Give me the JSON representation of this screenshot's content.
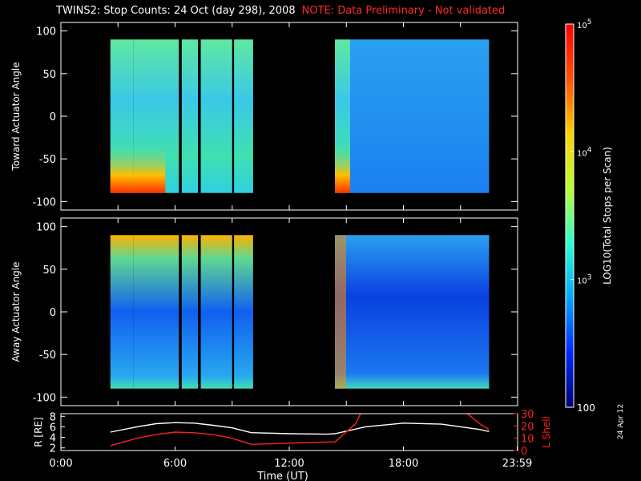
{
  "header": {
    "title": "TWINS2: Stop Counts: 24 Oct (day 298), 2008",
    "note": "NOTE: Data Preliminary - Not validated"
  },
  "date_stamp": "24 Apr 12",
  "colors": {
    "background": "#000000",
    "axes": "#ffffff",
    "note": "#ff2a2a",
    "lshell": "#ff2020",
    "radius": "#ffffff"
  },
  "chart_data": [
    {
      "type": "heatmap",
      "ylabel": "Toward Actuator Angle",
      "ylim": [
        -110,
        110
      ],
      "yticks": [
        -100,
        -50,
        0,
        50,
        100
      ],
      "xlim": [
        0,
        24
      ],
      "data_blocks_hours": [
        [
          2.6,
          3.8
        ],
        [
          3.8,
          6.2
        ],
        [
          6.35,
          7.2
        ],
        [
          7.35,
          9.0
        ],
        [
          9.1,
          10.1
        ],
        [
          14.4,
          15.2
        ],
        [
          15.2,
          18.8
        ],
        [
          18.8,
          22.5
        ]
      ],
      "angle_range": [
        -90,
        90
      ]
    },
    {
      "type": "heatmap",
      "ylabel": "Away Actuator Angle",
      "ylim": [
        -110,
        110
      ],
      "yticks": [
        -100,
        -50,
        0,
        50,
        100
      ],
      "xlim": [
        0,
        24
      ],
      "data_blocks_hours": [
        [
          2.6,
          3.8
        ],
        [
          3.8,
          6.2
        ],
        [
          6.35,
          7.2
        ],
        [
          7.35,
          9.0
        ],
        [
          9.1,
          10.1
        ],
        [
          14.4,
          15.2
        ],
        [
          15.2,
          18.8
        ],
        [
          18.8,
          22.5
        ]
      ],
      "angle_range": [
        -90,
        90
      ]
    },
    {
      "type": "line",
      "xlabel": "Time (UT)",
      "xticks": [
        "0:00",
        "6:00",
        "12:00",
        "18:00",
        "23:59"
      ],
      "xtick_hours": [
        0,
        6,
        12,
        18,
        23.98
      ],
      "left_axis": {
        "label": "R [RE]",
        "ylim": [
          1.5,
          8.5
        ],
        "yticks": [
          2,
          4,
          6,
          8
        ]
      },
      "right_axis": {
        "label": "L Shell",
        "ylim": [
          0,
          30
        ],
        "yticks": [
          0,
          10,
          20,
          30
        ]
      },
      "series": [
        {
          "axis": "left",
          "x": [
            2.6,
            4,
            5,
            6,
            7,
            8,
            9,
            10,
            12,
            14,
            14.4,
            16,
            18,
            20,
            22,
            22.5
          ],
          "y": [
            5.0,
            6.0,
            6.6,
            6.8,
            6.7,
            6.3,
            5.8,
            4.9,
            4.7,
            4.6,
            4.7,
            6.0,
            6.7,
            6.5,
            5.5,
            5.1
          ]
        },
        {
          "axis": "right",
          "x": [
            2.6,
            4,
            5,
            6,
            7,
            8,
            9,
            10,
            12,
            14,
            14.4,
            15.5,
            15.8
          ],
          "y": [
            4,
            10,
            13,
            15,
            14.5,
            13,
            10,
            5,
            6,
            7,
            7,
            22,
            32
          ]
        },
        {
          "axis": "right",
          "x": [
            21.2,
            22,
            22.5
          ],
          "y": [
            32,
            22,
            17
          ]
        }
      ]
    }
  ],
  "colorbar": {
    "label": "LOG10(Total Stops per Scan)",
    "scale": "log",
    "range": [
      100,
      100000
    ],
    "tick_labels": [
      "100",
      "10^3",
      "10^4",
      "10^5"
    ],
    "colors": [
      "#000070",
      "#0028ff",
      "#00a8ff",
      "#28ffd0",
      "#b8ff30",
      "#ffd000",
      "#ff5000",
      "#ff0000"
    ]
  }
}
